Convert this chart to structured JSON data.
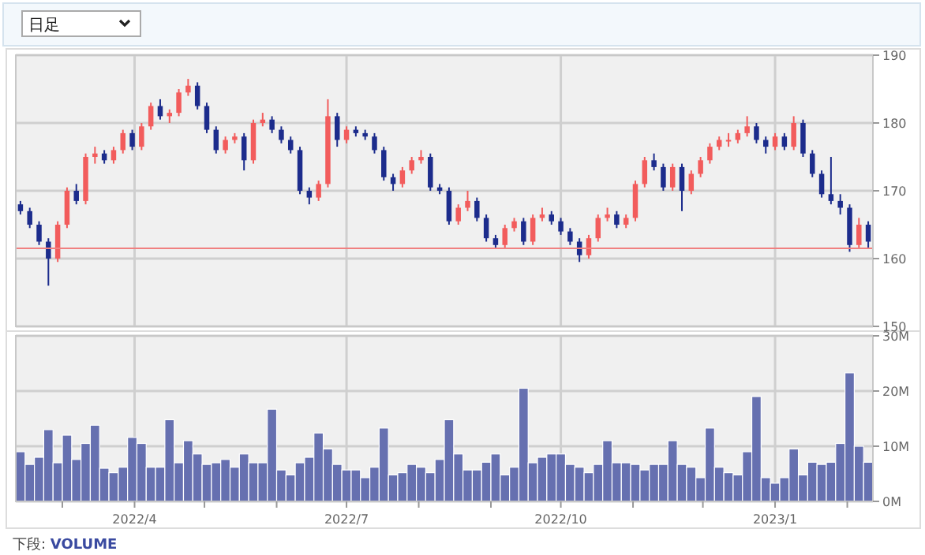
{
  "chart_data": [
    {
      "type": "candlestick",
      "annotations": [
        "日足"
      ],
      "x": [
        "2022-02-11",
        "2022-02-15",
        "2022-02-19",
        "2022-02-23",
        "2022-02-27",
        "2022-03-03",
        "2022-03-07",
        "2022-03-11",
        "2022-03-15",
        "2022-03-19",
        "2022-03-23",
        "2022-03-27",
        "2022-03-31",
        "2022-04-04",
        "2022-04-08",
        "2022-04-12",
        "2022-04-16",
        "2022-04-20",
        "2022-04-24",
        "2022-04-28",
        "2022-05-02",
        "2022-05-06",
        "2022-05-10",
        "2022-05-14",
        "2022-05-18",
        "2022-05-22",
        "2022-05-26",
        "2022-05-30",
        "2022-06-03",
        "2022-06-07",
        "2022-06-11",
        "2022-06-15",
        "2022-06-19",
        "2022-06-23",
        "2022-06-27",
        "2022-07-01",
        "2022-07-05",
        "2022-07-09",
        "2022-07-13",
        "2022-07-17",
        "2022-07-21",
        "2022-07-25",
        "2022-07-29",
        "2022-08-02",
        "2022-08-06",
        "2022-08-10",
        "2022-08-14",
        "2022-08-18",
        "2022-08-22",
        "2022-08-26",
        "2022-08-30",
        "2022-09-03",
        "2022-09-07",
        "2022-09-11",
        "2022-09-15",
        "2022-09-19",
        "2022-09-23",
        "2022-09-27",
        "2022-10-01",
        "2022-10-05",
        "2022-10-09",
        "2022-10-13",
        "2022-10-17",
        "2022-10-21",
        "2022-10-25",
        "2022-10-29",
        "2022-11-02",
        "2022-11-06",
        "2022-11-10",
        "2022-11-14",
        "2022-11-18",
        "2022-11-22",
        "2022-11-26",
        "2022-11-30",
        "2022-12-04",
        "2022-12-08",
        "2022-12-12",
        "2022-12-16",
        "2022-12-20",
        "2022-12-24",
        "2022-12-28",
        "2023-01-01",
        "2023-01-05",
        "2023-01-09",
        "2023-01-13",
        "2023-01-17",
        "2023-01-21",
        "2023-01-25",
        "2023-01-29",
        "2023-02-02",
        "2023-02-06",
        "2023-02-10"
      ],
      "ohlc": [
        [
          168,
          168.5,
          166.5,
          167
        ],
        [
          167,
          167.5,
          164.5,
          165
        ],
        [
          165,
          165.5,
          162,
          162.5
        ],
        [
          162.5,
          163,
          156,
          160
        ],
        [
          160,
          165.5,
          159.5,
          165
        ],
        [
          165,
          170.5,
          164.5,
          170
        ],
        [
          170,
          171,
          168,
          168.5
        ],
        [
          168.5,
          175.5,
          168,
          175
        ],
        [
          175,
          176.5,
          174,
          175.5
        ],
        [
          175.5,
          176,
          174,
          174.5
        ],
        [
          174.5,
          176.5,
          174,
          176
        ],
        [
          176,
          179,
          175.5,
          178.5
        ],
        [
          178.5,
          179,
          176,
          176.5
        ],
        [
          176.5,
          180,
          176,
          179.5
        ],
        [
          179.5,
          183,
          179,
          182.5
        ],
        [
          182.5,
          183.5,
          180.5,
          181
        ],
        [
          181,
          182,
          180,
          181.5
        ],
        [
          181.5,
          185,
          181,
          184.5
        ],
        [
          184.5,
          186.5,
          184,
          185.5
        ],
        [
          185.5,
          186,
          182,
          182.5
        ],
        [
          182.5,
          183,
          178.5,
          179
        ],
        [
          179,
          179.5,
          175.5,
          176
        ],
        [
          176,
          178,
          175.5,
          177.5
        ],
        [
          177.5,
          178.5,
          177,
          178
        ],
        [
          178,
          178.5,
          173,
          174.5
        ],
        [
          174.5,
          180.5,
          174,
          180
        ],
        [
          180,
          181.5,
          179.5,
          180.5
        ],
        [
          180.5,
          181,
          178.5,
          179
        ],
        [
          179,
          179.5,
          177,
          177.5
        ],
        [
          177.5,
          178,
          175.5,
          176
        ],
        [
          176,
          176.5,
          169.5,
          170
        ],
        [
          170,
          170.5,
          168,
          169
        ],
        [
          169,
          171.5,
          168.5,
          171
        ],
        [
          171,
          183.5,
          170.5,
          181
        ],
        [
          181,
          181.5,
          176.5,
          177.5
        ],
        [
          177.5,
          179.5,
          177,
          179
        ],
        [
          179,
          179.5,
          178,
          178.5
        ],
        [
          178.5,
          179,
          177.5,
          178
        ],
        [
          178,
          178.5,
          175.5,
          176
        ],
        [
          176,
          176.5,
          171.5,
          172
        ],
        [
          172,
          172.5,
          170,
          171
        ],
        [
          171,
          173.5,
          170.5,
          173
        ],
        [
          173,
          175,
          172.5,
          174.5
        ],
        [
          174.5,
          176,
          174,
          175
        ],
        [
          175,
          175.5,
          170,
          170.5
        ],
        [
          170.5,
          171,
          169.5,
          170
        ],
        [
          170,
          170.5,
          165,
          165.5
        ],
        [
          165.5,
          168,
          165,
          167.5
        ],
        [
          167.5,
          170,
          167,
          168.5
        ],
        [
          168.5,
          169,
          165.5,
          166
        ],
        [
          166,
          166.5,
          162.5,
          163
        ],
        [
          163,
          163.5,
          161.5,
          162
        ],
        [
          162,
          165,
          161.5,
          164.5
        ],
        [
          164.5,
          166,
          164,
          165.5
        ],
        [
          165.5,
          166,
          162,
          162.5
        ],
        [
          162.5,
          166.5,
          162,
          166
        ],
        [
          166,
          167.5,
          165.5,
          166.5
        ],
        [
          166.5,
          167,
          165,
          165.5
        ],
        [
          165.5,
          166,
          163.5,
          164
        ],
        [
          164,
          164.5,
          162,
          162.5
        ],
        [
          162.5,
          163,
          159.5,
          160.5
        ],
        [
          160.5,
          163.5,
          160,
          163
        ],
        [
          163,
          166.5,
          162.5,
          166
        ],
        [
          166,
          167.5,
          165.5,
          166.5
        ],
        [
          166.5,
          167,
          164.5,
          165
        ],
        [
          165,
          166.5,
          164.5,
          166
        ],
        [
          166,
          171.5,
          165.5,
          171
        ],
        [
          171,
          175,
          170.5,
          174.5
        ],
        [
          174.5,
          175.5,
          173,
          173.5
        ],
        [
          173.5,
          174,
          170,
          170.5
        ],
        [
          170.5,
          174,
          170,
          173.5
        ],
        [
          173.5,
          174,
          167,
          170
        ],
        [
          170,
          173,
          169.5,
          172.5
        ],
        [
          172.5,
          175,
          172,
          174.5
        ],
        [
          174.5,
          177,
          174,
          176.5
        ],
        [
          176.5,
          178,
          176,
          177.5
        ],
        [
          177.5,
          178.5,
          176.5,
          177.5
        ],
        [
          177.5,
          179,
          177,
          178.5
        ],
        [
          178.5,
          181,
          178,
          179.5
        ],
        [
          179.5,
          180,
          177,
          177.5
        ],
        [
          177.5,
          178,
          175.5,
          176.5
        ],
        [
          176.5,
          178.5,
          176,
          178
        ],
        [
          178,
          178.5,
          176,
          176.5
        ],
        [
          176.5,
          181,
          176,
          180
        ],
        [
          180,
          180.5,
          175,
          175.5
        ],
        [
          175.5,
          176,
          172,
          172.5
        ],
        [
          172.5,
          173,
          169,
          169.5
        ],
        [
          169.5,
          175,
          168,
          168.5
        ],
        [
          168.5,
          169.5,
          166.5,
          167.5
        ],
        [
          167.5,
          168,
          161,
          162
        ],
        [
          162,
          166,
          161.5,
          165
        ],
        [
          165,
          165.5,
          161.5,
          162.5
        ]
      ],
      "xlim": [
        "2022-02-09",
        "2023-02-12"
      ],
      "xticks": [
        "2022-04-01",
        "2022-07-01",
        "2022-10-01",
        "2023-01-01"
      ],
      "ylim": [
        150,
        190
      ],
      "yticks": [
        150,
        160,
        170,
        180,
        190
      ],
      "grid": true,
      "tick_labels": "y",
      "ref_lines": [
        {
          "axis": "y",
          "value": 161.5,
          "color": "#f08080"
        }
      ]
    },
    {
      "type": "bar",
      "color": "#6670b0",
      "annotations": [
        "下段: VOLUME"
      ],
      "x": [
        "2022-02-11",
        "2022-02-15",
        "2022-02-19",
        "2022-02-23",
        "2022-02-27",
        "2022-03-03",
        "2022-03-07",
        "2022-03-11",
        "2022-03-15",
        "2022-03-19",
        "2022-03-23",
        "2022-03-27",
        "2022-03-31",
        "2022-04-04",
        "2022-04-08",
        "2022-04-12",
        "2022-04-16",
        "2022-04-20",
        "2022-04-24",
        "2022-04-28",
        "2022-05-02",
        "2022-05-06",
        "2022-05-10",
        "2022-05-14",
        "2022-05-18",
        "2022-05-22",
        "2022-05-26",
        "2022-05-30",
        "2022-06-03",
        "2022-06-07",
        "2022-06-11",
        "2022-06-15",
        "2022-06-19",
        "2022-06-23",
        "2022-06-27",
        "2022-07-01",
        "2022-07-05",
        "2022-07-09",
        "2022-07-13",
        "2022-07-17",
        "2022-07-21",
        "2022-07-25",
        "2022-07-29",
        "2022-08-02",
        "2022-08-06",
        "2022-08-10",
        "2022-08-14",
        "2022-08-18",
        "2022-08-22",
        "2022-08-26",
        "2022-08-30",
        "2022-09-03",
        "2022-09-07",
        "2022-09-11",
        "2022-09-15",
        "2022-09-19",
        "2022-09-23",
        "2022-09-27",
        "2022-10-01",
        "2022-10-05",
        "2022-10-09",
        "2022-10-13",
        "2022-10-17",
        "2022-10-21",
        "2022-10-25",
        "2022-10-29",
        "2022-11-02",
        "2022-11-06",
        "2022-11-10",
        "2022-11-14",
        "2022-11-18",
        "2022-11-22",
        "2022-11-26",
        "2022-11-30",
        "2022-12-04",
        "2022-12-08",
        "2022-12-12",
        "2022-12-16",
        "2022-12-20",
        "2022-12-24",
        "2022-12-28",
        "2023-01-01",
        "2023-01-05",
        "2023-01-09",
        "2023-01-13",
        "2023-01-17",
        "2023-01-21",
        "2023-01-25",
        "2023-01-29",
        "2023-02-02",
        "2023-02-06",
        "2023-02-10"
      ],
      "values": [
        9,
        6.7,
        8,
        13,
        7,
        12,
        7.6,
        10.5,
        13.8,
        6,
        5.2,
        6.2,
        11.6,
        10.5,
        6.2,
        6.2,
        14.8,
        7,
        11,
        8.6,
        6.7,
        7,
        7.6,
        6.2,
        8.6,
        7,
        7,
        16.7,
        5.7,
        4.8,
        7,
        8,
        12.4,
        9.5,
        6.7,
        5.7,
        5.7,
        4.3,
        6.2,
        13.3,
        4.8,
        5.2,
        6.7,
        6.2,
        5.2,
        7.6,
        14.8,
        8.6,
        5.7,
        5.7,
        7.1,
        8.6,
        4.8,
        6.2,
        20.5,
        7,
        8,
        8.6,
        8.6,
        6.7,
        6.2,
        5.2,
        6.7,
        11,
        7,
        7,
        6.7,
        5.7,
        6.7,
        6.7,
        11,
        6.7,
        6.2,
        4.3,
        13.3,
        6.2,
        5.2,
        4.8,
        9,
        19,
        4.3,
        3.3,
        4.3,
        9.5,
        4.8,
        7.1,
        6.7,
        7.1,
        10.5,
        23.3,
        10,
        7.1
      ],
      "xlim": [
        "2022-02-09",
        "2023-02-12"
      ],
      "xticks": [
        {
          "value": "2022-03-01",
          "label": null
        },
        {
          "value": "2022-04-01",
          "label": "2022/4"
        },
        {
          "value": "2022-05-01",
          "label": null
        },
        {
          "value": "2022-06-01",
          "label": null
        },
        {
          "value": "2022-07-01",
          "label": "2022/7"
        },
        {
          "value": "2022-08-01",
          "label": null
        },
        {
          "value": "2022-09-01",
          "label": null
        },
        {
          "value": "2022-10-01",
          "label": "2022/10"
        },
        {
          "value": "2022-11-01",
          "label": null
        },
        {
          "value": "2022-12-01",
          "label": null
        },
        {
          "value": "2023-01-01",
          "label": "2023/1"
        },
        {
          "value": "2023-02-01",
          "label": null
        }
      ],
      "ylim": [
        0,
        30
      ],
      "yticks": [
        {
          "value": 0,
          "label": "0M"
        },
        {
          "value": 10,
          "label": "10M"
        },
        {
          "value": 20,
          "label": "20M"
        },
        {
          "value": 30,
          "label": "30M"
        }
      ],
      "grid": true
    }
  ]
}
